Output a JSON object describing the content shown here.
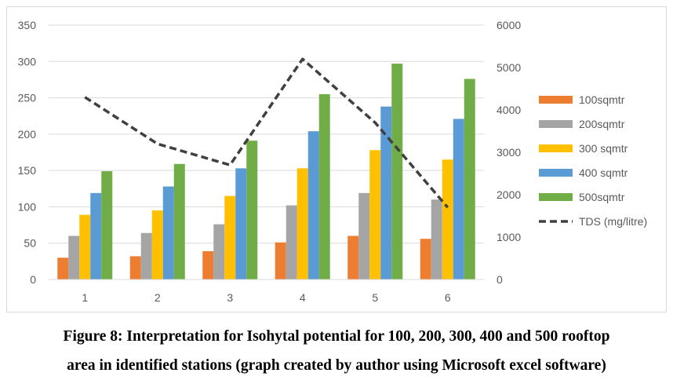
{
  "chart_data": {
    "type": "bar",
    "categories": [
      "1",
      "2",
      "3",
      "4",
      "5",
      "6"
    ],
    "series": [
      {
        "name": "100sqmtr",
        "values": [
          30,
          32,
          39,
          51,
          60,
          56
        ],
        "color": "#ED7D31"
      },
      {
        "name": "200sqmtr",
        "values": [
          60,
          64,
          76,
          102,
          119,
          110
        ],
        "color": "#A5A5A5"
      },
      {
        "name": "300 sqmtr",
        "values": [
          89,
          95,
          115,
          153,
          178,
          165
        ],
        "color": "#FFC000"
      },
      {
        "name": "400 sqmtr",
        "values": [
          119,
          128,
          153,
          204,
          238,
          221
        ],
        "color": "#5B9BD5"
      },
      {
        "name": "500sqmtr",
        "values": [
          149,
          159,
          191,
          255,
          297,
          276
        ],
        "color": "#70AD47"
      }
    ],
    "line_series": {
      "name": "TDS (mg/litre)",
      "values": [
        4300,
        3200,
        2700,
        5200,
        3700,
        1700
      ],
      "color": "#404040",
      "style": "dashed"
    },
    "ylim": [
      0,
      350
    ],
    "y_ticks": [
      "0",
      "50",
      "100",
      "150",
      "200",
      "250",
      "300",
      "350"
    ],
    "y2lim": [
      0,
      6000
    ],
    "y2_ticks": [
      "0",
      "1000",
      "2000",
      "3000",
      "4000",
      "5000",
      "6000"
    ],
    "grid": true,
    "legend_position": "right"
  },
  "caption": {
    "line1": "Figure 8: Interpretation for Isohytal potential for 100, 200, 300, 400 and 500 rooftop",
    "line2": "area in identified stations (graph created by author using Microsoft excel software)"
  }
}
